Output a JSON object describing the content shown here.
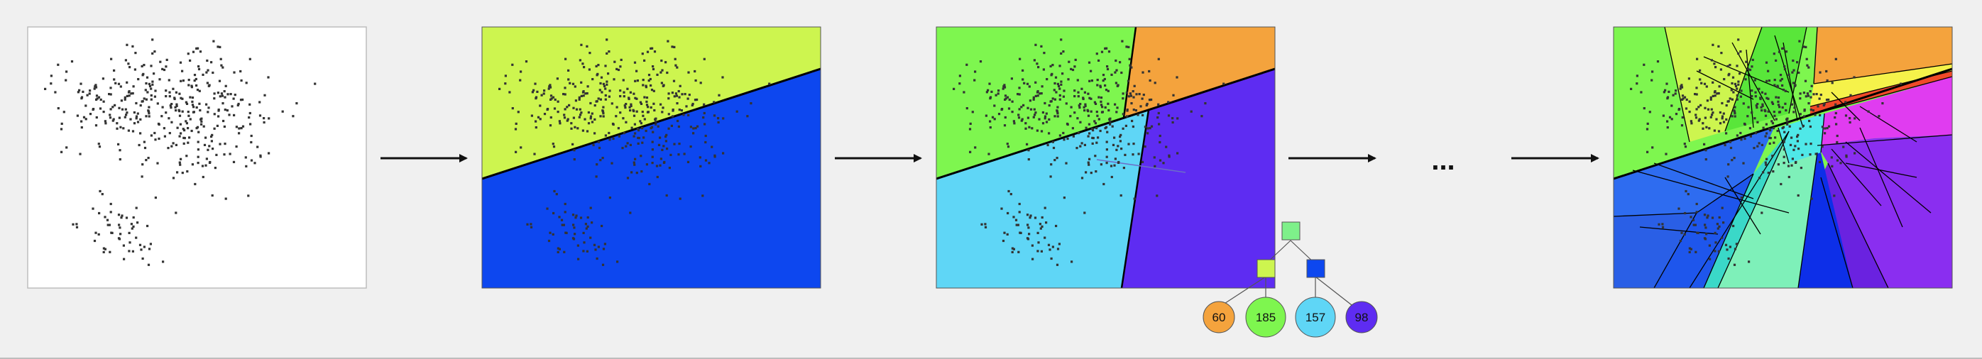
{
  "colors": {
    "background": "#f0f0f0",
    "panel_white": "#ffffff",
    "arrow": "#111111",
    "boundary": "#000000",
    "point": "#333333",
    "yellow_green": "#cdf54f",
    "blue": "#0d47ef",
    "green": "#7ef64f",
    "orange": "#f4a33d",
    "cyan": "#5fd6f6",
    "purple": "#5e2cf2",
    "mint": "#7ef0b9",
    "magenta": "#e03cf0",
    "violet": "#8a2ef0",
    "mid_blue": "#2e6cf0",
    "light_yellow": "#f5f24a",
    "red_orange": "#f04a28"
  },
  "panels": [
    {
      "name": "panel-unpartitioned-points",
      "description_fill": "white"
    },
    {
      "name": "panel-first-split"
    },
    {
      "name": "panel-second-split"
    },
    {
      "name": "panel-deep-partition"
    }
  ],
  "ellipsis": "...",
  "tree": {
    "root": {
      "icon": "square-node-icon",
      "color": "#7ef08a"
    },
    "internal": [
      {
        "icon": "square-node-icon",
        "color": "#cdf54f"
      },
      {
        "icon": "square-node-icon",
        "color": "#0d47ef"
      }
    ],
    "leaves": [
      {
        "label": "60",
        "color": "#f4a33d"
      },
      {
        "label": "185",
        "color": "#7ef64f"
      },
      {
        "label": "157",
        "color": "#5fd6f6"
      },
      {
        "label": "98",
        "color": "#5e2cf2"
      }
    ]
  }
}
